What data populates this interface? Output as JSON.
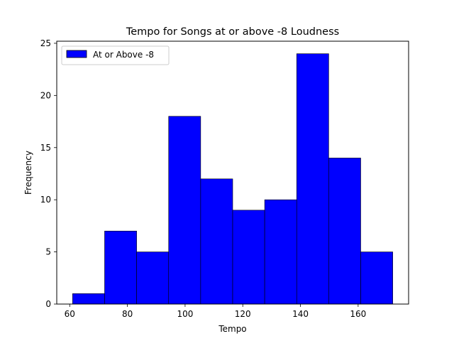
{
  "chart_data": {
    "type": "bar",
    "title": "Tempo for Songs at or above -8 Loudness",
    "xlabel": "Tempo",
    "ylabel": "Frequency",
    "bin_edges": [
      61,
      72.1,
      83.2,
      94.3,
      105.4,
      116.5,
      127.6,
      138.7,
      149.8,
      160.9,
      172
    ],
    "values": [
      1,
      7,
      5,
      18,
      12,
      9,
      10,
      24,
      14,
      5
    ],
    "xlim": [
      55.5,
      177.5
    ],
    "ylim": [
      0,
      25.2
    ],
    "xticks": [
      60,
      80,
      100,
      120,
      140,
      160
    ],
    "yticks": [
      0,
      5,
      10,
      15,
      20,
      25
    ],
    "series": [
      {
        "name": "At or Above -8",
        "color": "#0000ff"
      }
    ],
    "edge_color": "#000000",
    "legend": "top-left",
    "grid": false
  }
}
